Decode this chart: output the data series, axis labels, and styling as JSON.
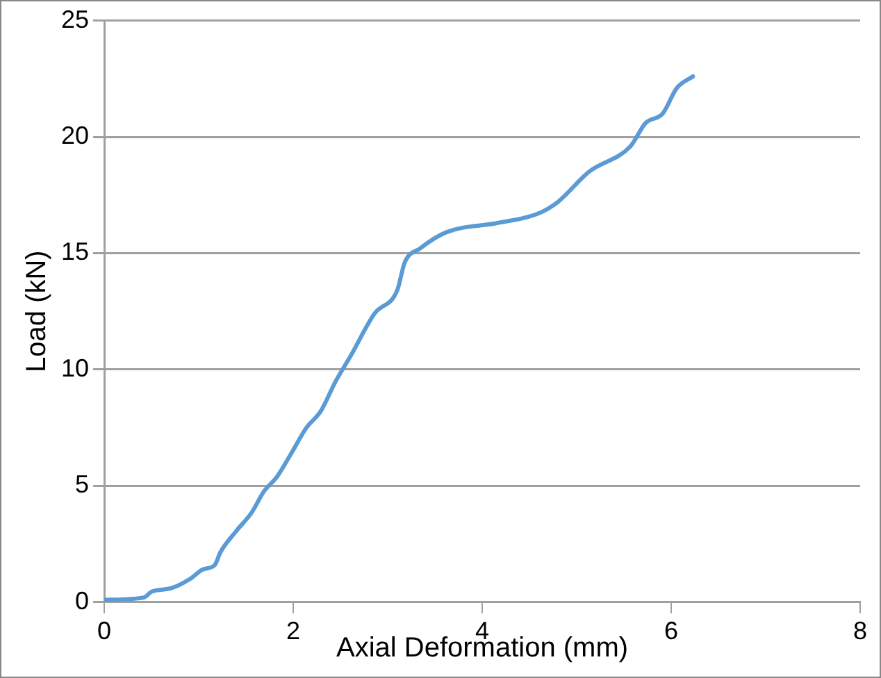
{
  "chart_data": {
    "type": "line",
    "xlabel": "Axial Deformation (mm)",
    "ylabel": "Load (kN)",
    "xlim": [
      0,
      8
    ],
    "xticks": [
      0,
      2,
      4,
      6,
      8
    ],
    "ylim": [
      0,
      25
    ],
    "yticks": [
      0,
      5,
      10,
      15,
      20,
      25
    ],
    "grid": "y",
    "legend": false,
    "marker": "none",
    "line_style": "solid",
    "series": [
      {
        "color": "#5b9bd5",
        "x": [
          0,
          0.42,
          0.5,
          0.71,
          0.91,
          1.04,
          1.17,
          1.23,
          1.4,
          1.56,
          1.69,
          1.83,
          1.98,
          2.14,
          2.29,
          2.45,
          2.61,
          2.86,
          3.1,
          3.18,
          3.34,
          3.62,
          4.16,
          4.59,
          4.8,
          5.13,
          5.57,
          5.73,
          5.91,
          6.06,
          6.23
        ],
        "values": [
          0.1,
          0.2,
          0.45,
          0.6,
          1.0,
          1.4,
          1.6,
          2.15,
          3.07,
          3.85,
          4.76,
          5.4,
          6.4,
          7.5,
          8.2,
          9.5,
          10.6,
          12.4,
          13.4,
          14.6,
          15.2,
          15.9,
          16.3,
          16.7,
          17.2,
          18.5,
          19.6,
          20.6,
          21.0,
          22.1,
          22.6
        ]
      }
    ]
  }
}
